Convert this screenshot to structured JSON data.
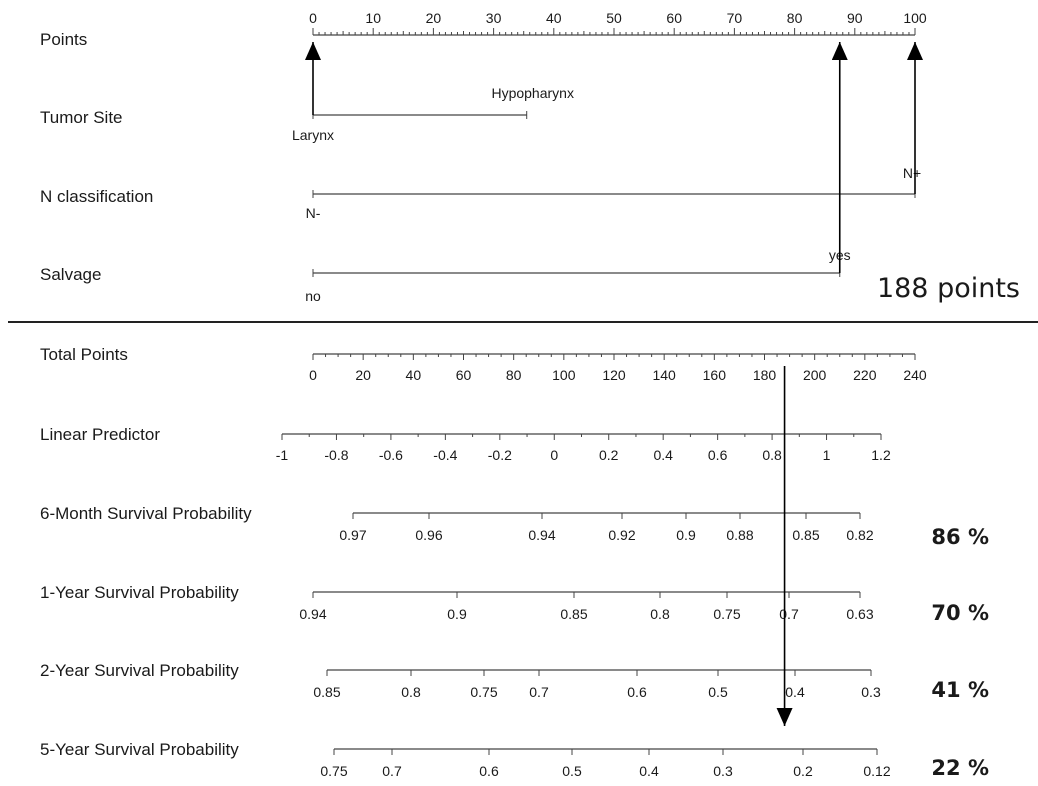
{
  "chart_data": {
    "type": "nomogram",
    "points_scale": {
      "label": "Points",
      "range": [
        0,
        100
      ],
      "tick_labels": [
        "0",
        "10",
        "20",
        "30",
        "40",
        "50",
        "60",
        "70",
        "80",
        "90",
        "100"
      ]
    },
    "predictors": [
      {
        "label": "Tumor Site",
        "levels": [
          {
            "label": "Larynx",
            "points": 0
          },
          {
            "label": "Hypopharynx",
            "points": 35.5
          }
        ]
      },
      {
        "label": "N classification",
        "levels": [
          {
            "label": "N-",
            "points": 0
          },
          {
            "label": "N+",
            "points": 100
          }
        ]
      },
      {
        "label": "Salvage",
        "levels": [
          {
            "label": "no",
            "points": 0
          },
          {
            "label": "yes",
            "points": 87.5
          }
        ]
      }
    ],
    "example": {
      "selected": {
        "Tumor Site": "Larynx",
        "N classification": "N+",
        "Salvage": "yes"
      },
      "total_points_label": "188 points",
      "total_points": 188,
      "predictions": [
        {
          "scale": "6-Month Survival Probability",
          "label": "86 %"
        },
        {
          "scale": "1-Year Survival Probability",
          "label": "70 %"
        },
        {
          "scale": "2-Year Survival Probability",
          "label": "41 %"
        },
        {
          "scale": "5-Year Survival Probability",
          "label": "22 %"
        }
      ]
    },
    "total_points_scale": {
      "label": "Total Points",
      "range": [
        0,
        240
      ],
      "tick_labels": [
        "0",
        "20",
        "40",
        "60",
        "80",
        "100",
        "120",
        "140",
        "160",
        "180",
        "200",
        "220",
        "240"
      ]
    },
    "linear_predictor": {
      "label": "Linear Predictor",
      "range": [
        -1,
        1.2
      ],
      "tick_labels": [
        "-1",
        "-0.8",
        "-0.6",
        "-0.4",
        "-0.2",
        "0",
        "0.2",
        "0.4",
        "0.6",
        "0.8",
        "1",
        "1.2"
      ]
    },
    "survival_scales": [
      {
        "label": "6-Month Survival Probability",
        "ticks": [
          {
            "value": 0.97,
            "label": "0.97"
          },
          {
            "value": 0.96,
            "label": "0.96"
          },
          {
            "value": 0.94,
            "label": "0.94"
          },
          {
            "value": 0.92,
            "label": "0.92"
          },
          {
            "value": 0.9,
            "label": "0.9"
          },
          {
            "value": 0.88,
            "label": "0.88"
          },
          {
            "value": 0.85,
            "label": "0.85"
          },
          {
            "value": 0.82,
            "label": "0.82"
          }
        ]
      },
      {
        "label": "1-Year Survival Probability",
        "ticks": [
          {
            "value": 0.94,
            "label": "0.94"
          },
          {
            "value": 0.9,
            "label": "0.9"
          },
          {
            "value": 0.85,
            "label": "0.85"
          },
          {
            "value": 0.8,
            "label": "0.8"
          },
          {
            "value": 0.75,
            "label": "0.75"
          },
          {
            "value": 0.7,
            "label": "0.7"
          },
          {
            "value": 0.63,
            "label": "0.63"
          }
        ]
      },
      {
        "label": "2-Year Survival Probability",
        "ticks": [
          {
            "value": 0.85,
            "label": "0.85"
          },
          {
            "value": 0.8,
            "label": "0.8"
          },
          {
            "value": 0.75,
            "label": "0.75"
          },
          {
            "value": 0.7,
            "label": "0.7"
          },
          {
            "value": 0.6,
            "label": "0.6"
          },
          {
            "value": 0.5,
            "label": "0.5"
          },
          {
            "value": 0.4,
            "label": "0.4"
          },
          {
            "value": 0.3,
            "label": "0.3"
          }
        ]
      },
      {
        "label": "5-Year Survival Probability",
        "ticks": [
          {
            "value": 0.75,
            "label": "0.75"
          },
          {
            "value": 0.7,
            "label": "0.7"
          },
          {
            "value": 0.6,
            "label": "0.6"
          },
          {
            "value": 0.5,
            "label": "0.5"
          },
          {
            "value": 0.4,
            "label": "0.4"
          },
          {
            "value": 0.3,
            "label": "0.3"
          },
          {
            "value": 0.2,
            "label": "0.2"
          },
          {
            "value": 0.12,
            "label": "0.12"
          }
        ]
      }
    ],
    "colors": {
      "ink": "#1a1a1a",
      "axis": "#444444",
      "divider": "#222222"
    }
  }
}
